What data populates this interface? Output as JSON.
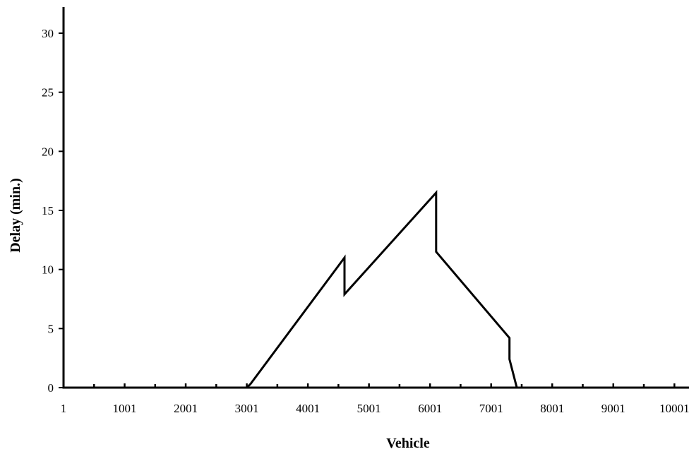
{
  "chart_data": {
    "type": "line",
    "title": "",
    "xlabel": "Vehicle",
    "ylabel": "Delay (min.)",
    "xlim": [
      1,
      10240
    ],
    "ylim": [
      0,
      32
    ],
    "x_ticks": [
      1,
      1001,
      2001,
      3001,
      4001,
      5001,
      6001,
      7001,
      8001,
      9001,
      10001
    ],
    "x_tick_labels": [
      "1",
      "1001",
      "2001",
      "3001",
      "4001",
      "5001",
      "6001",
      "7001",
      "8001",
      "9001",
      "10001"
    ],
    "x_minor_ticks": [
      501,
      1501,
      2501,
      3501,
      4501,
      5501,
      6501,
      7501,
      8501,
      9501
    ],
    "y_ticks": [
      0,
      5,
      10,
      15,
      20,
      25,
      30
    ],
    "y_tick_labels": [
      "0",
      "5",
      "10",
      "15",
      "20",
      "25",
      "30"
    ],
    "grid": false,
    "series": [
      {
        "x": [
          1,
          3000,
          3060,
          4601,
          4601,
          6101,
          6101,
          7301,
          7301,
          7421
        ],
        "y": [
          0,
          0,
          0.3,
          11.0,
          7.9,
          16.5,
          11.5,
          4.2,
          2.4,
          0
        ]
      }
    ]
  }
}
